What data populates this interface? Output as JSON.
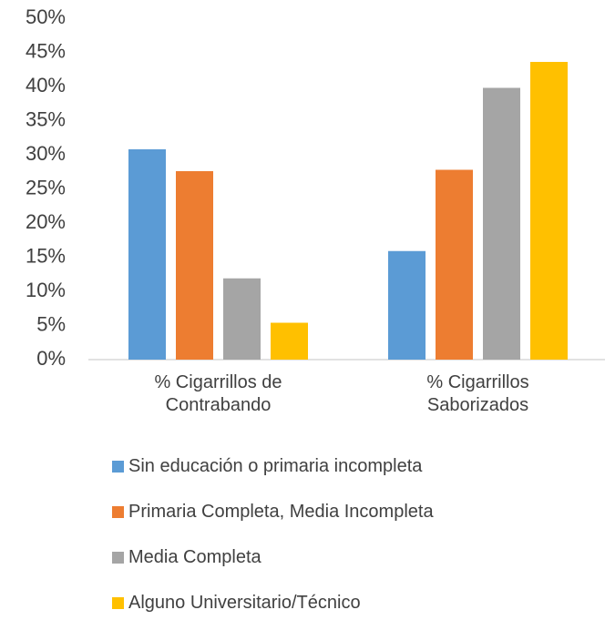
{
  "chart_data": {
    "type": "bar",
    "categories": [
      "% Cigarrillos de Contrabando",
      "% Cigarrillos Saborizados"
    ],
    "series": [
      {
        "name": "Sin educación o primaria incompleta",
        "color": "#5b9bd5",
        "values": [
          30.8,
          15.9
        ]
      },
      {
        "name": "Primaria Completa, Media Incompleta",
        "color": "#ed7d31",
        "values": [
          27.6,
          27.8
        ]
      },
      {
        "name": "Media Completa",
        "color": "#a5a5a5",
        "values": [
          11.9,
          39.8
        ]
      },
      {
        "name": "Alguno Universitario/Técnico",
        "color": "#ffc000",
        "values": [
          5.4,
          43.6
        ]
      }
    ],
    "ylim": [
      0,
      50
    ],
    "yticks": [
      {
        "value": 0,
        "label": "0%"
      },
      {
        "value": 5,
        "label": "5%"
      },
      {
        "value": 10,
        "label": "10%"
      },
      {
        "value": 15,
        "label": "15%"
      },
      {
        "value": 20,
        "label": "20%"
      },
      {
        "value": 25,
        "label": "25%"
      },
      {
        "value": 30,
        "label": "30%"
      },
      {
        "value": 35,
        "label": "35%"
      },
      {
        "value": 40,
        "label": "40%"
      },
      {
        "value": 45,
        "label": "45%"
      },
      {
        "value": 50,
        "label": "50%"
      }
    ],
    "grid": false,
    "legend": "bottom"
  }
}
